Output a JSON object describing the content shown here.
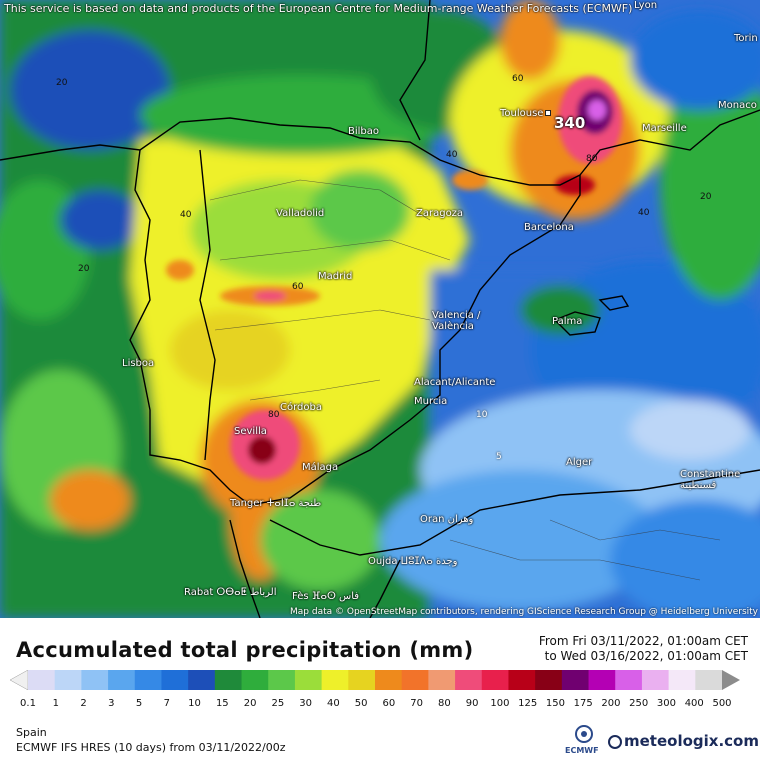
{
  "map": {
    "banner": "This service is based on data and products of the European Centre for Medium-range Weather Forecasts (ECMWF)",
    "attribution": "Map data © OpenStreetMap contributors, rendering GIScience Research Group @ Heidelberg University",
    "max_label": "340",
    "cities": [
      "Toulouse",
      "Marseille",
      "Torin",
      "Monaco",
      "Lyon",
      "Bilbao",
      "Valladolid",
      "Zaragoza",
      "Barcelona",
      "Madrid",
      "Valencia / València",
      "Palma",
      "Lisboa",
      "Alacant/Alicante",
      "Murcia",
      "Córdoba",
      "Sevilla",
      "Málaga",
      "Tanger ⵜⴰⵏⵊⴰ طنجة",
      "Alger",
      "Constantine قسنطينة",
      "Oran وهران",
      "Oujda ⵡⵓⵊⴷⴰ وجدة",
      "Rabat ⵔⴱⴰⵟ الرباط",
      "Fès ⴼⴰⵙ فاس"
    ],
    "contour_labels": [
      "20",
      "40",
      "60",
      "80",
      "10",
      "5",
      "40",
      "20",
      "60",
      "80",
      "40",
      "20"
    ]
  },
  "legend": {
    "title": "Accumulated total precipitation (mm)",
    "from": "From Fri 03/11/2022, 01:00am CET",
    "to": "to Wed 03/16/2022, 01:00am CET",
    "region": "Spain",
    "model": "ECMWF IFS HRES  (10 days)  from  03/11/2022/00z",
    "brand": "meteologix.com",
    "ecmwf": "ECMWF"
  },
  "colorbar": {
    "ticks": [
      "0.1",
      "1",
      "2",
      "3",
      "5",
      "7",
      "10",
      "15",
      "20",
      "25",
      "30",
      "40",
      "50",
      "60",
      "70",
      "80",
      "90",
      "100",
      "125",
      "150",
      "175",
      "200",
      "250",
      "300",
      "400",
      "500"
    ],
    "colors": [
      "#dcdcf5",
      "#bcd6f7",
      "#8fc2f5",
      "#5aa6ee",
      "#3589e6",
      "#1f6fd8",
      "#1d4fb8",
      "#1f8a3a",
      "#2fad3c",
      "#5cc84a",
      "#9bdd3a",
      "#eef02a",
      "#e6d320",
      "#ee8a1c",
      "#f2732a",
      "#f09a72",
      "#ef4c7a",
      "#e8204c",
      "#b80018",
      "#880016",
      "#700070",
      "#b400b4",
      "#d860e8",
      "#eab0f0",
      "#f4e8f8",
      "#dadada"
    ]
  }
}
